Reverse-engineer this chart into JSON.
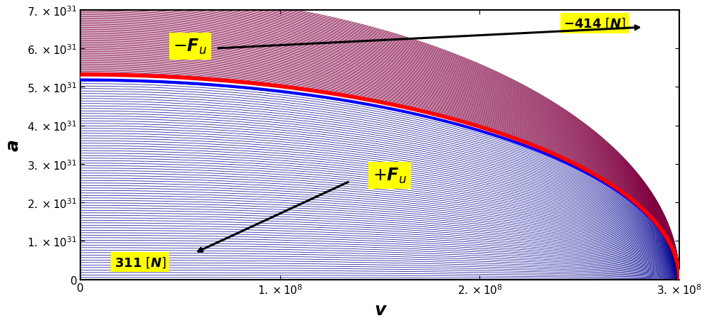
{
  "xlabel": "v",
  "ylabel": "a",
  "xlim": [
    0,
    300000000.0
  ],
  "ylim": [
    0,
    7e+31
  ],
  "red_line_color": "#ff0000",
  "blue_line_color": "#0000ff",
  "upper_line_color": "#800040",
  "lower_line_color": "#000090",
  "c_light": 300000000.0,
  "A_red": 5.32e+31,
  "A_blue": 5.18e+31,
  "yellow_bg": "#ffff00",
  "n_upper": 80,
  "n_lower": 80,
  "K_upper_min": 5.35e+31,
  "K_upper_max": 7.5e+31,
  "K_lower_min": 5e+29,
  "K_lower_max": 5.15e+31
}
